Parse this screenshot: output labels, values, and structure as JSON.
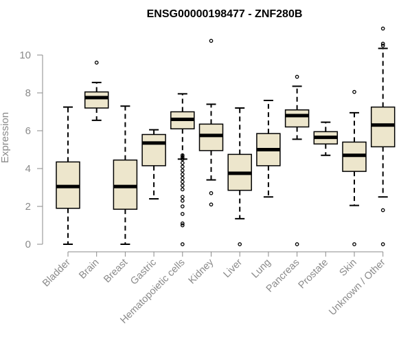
{
  "chart_data": {
    "type": "boxplot",
    "title": "ENSG00000198477 - ZNF280B",
    "ylabel": "Expression",
    "xlabel": "",
    "ylim": [
      0,
      11.5
    ],
    "yticks": [
      0,
      2,
      4,
      6,
      8,
      10
    ],
    "grid": false,
    "box_color": "#ede6cc",
    "categories": [
      "Bladder",
      "Brain",
      "Breast",
      "Gastric",
      "Hematopoietic cells",
      "Kidney",
      "Liver",
      "Lung",
      "Pancreas",
      "Prostate",
      "Skin",
      "Unknown / Other"
    ],
    "boxes": [
      {
        "whisker_low": 0.0,
        "q1": 1.9,
        "median": 3.05,
        "q3": 4.35,
        "whisker_high": 7.25,
        "outliers": []
      },
      {
        "whisker_low": 6.55,
        "q1": 7.2,
        "median": 7.75,
        "q3": 8.05,
        "whisker_high": 8.55,
        "outliers": [
          9.6
        ]
      },
      {
        "whisker_low": 0.0,
        "q1": 1.85,
        "median": 3.05,
        "q3": 4.45,
        "whisker_high": 7.3,
        "outliers": []
      },
      {
        "whisker_low": 2.4,
        "q1": 4.15,
        "median": 5.35,
        "q3": 5.8,
        "whisker_high": 6.05,
        "outliers": []
      },
      {
        "whisker_low": 4.5,
        "q1": 6.1,
        "median": 6.6,
        "q3": 7.0,
        "whisker_high": 7.95,
        "outliers": [
          0.0,
          1.0,
          1.1,
          1.6,
          2.0,
          2.3,
          2.5,
          2.9,
          3.1,
          3.3,
          3.5,
          3.7,
          3.9,
          4.1,
          4.3,
          4.5,
          4.6,
          4.7
        ]
      },
      {
        "whisker_low": 3.4,
        "q1": 4.95,
        "median": 5.75,
        "q3": 6.35,
        "whisker_high": 7.4,
        "outliers": [
          2.1,
          2.7,
          10.75
        ]
      },
      {
        "whisker_low": 1.35,
        "q1": 2.85,
        "median": 3.75,
        "q3": 4.75,
        "whisker_high": 7.2,
        "outliers": [
          0.0
        ]
      },
      {
        "whisker_low": 2.5,
        "q1": 4.15,
        "median": 5.0,
        "q3": 5.85,
        "whisker_high": 7.6,
        "outliers": []
      },
      {
        "whisker_low": 5.55,
        "q1": 6.2,
        "median": 6.8,
        "q3": 7.1,
        "whisker_high": 8.35,
        "outliers": [
          0.0,
          8.85
        ]
      },
      {
        "whisker_low": 4.7,
        "q1": 5.3,
        "median": 5.65,
        "q3": 5.95,
        "whisker_high": 6.45,
        "outliers": []
      },
      {
        "whisker_low": 2.05,
        "q1": 3.85,
        "median": 4.7,
        "q3": 5.4,
        "whisker_high": 6.95,
        "outliers": [
          0.0,
          8.05
        ]
      },
      {
        "whisker_low": 2.5,
        "q1": 5.15,
        "median": 6.3,
        "q3": 7.25,
        "whisker_high": 10.35,
        "outliers": [
          0.0,
          1.8,
          10.5,
          10.6,
          11.4
        ]
      }
    ]
  }
}
